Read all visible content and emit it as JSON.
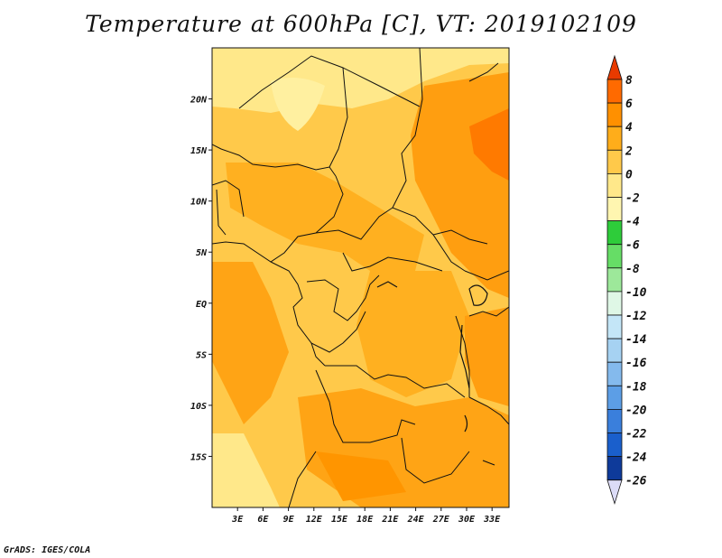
{
  "title": "Temperature at 600hPa [C], VT: 2019102109",
  "credit": "GrADS: IGES/COLA",
  "map": {
    "lon_range": [
      0,
      35
    ],
    "lat_range": [
      -20,
      25
    ],
    "lat_ticks": [
      {
        "value": 20,
        "label": "20N"
      },
      {
        "value": 15,
        "label": "15N"
      },
      {
        "value": 10,
        "label": "10N"
      },
      {
        "value": 5,
        "label": "5N"
      },
      {
        "value": 0,
        "label": "EQ"
      },
      {
        "value": -5,
        "label": "5S"
      },
      {
        "value": -10,
        "label": "10S"
      },
      {
        "value": -15,
        "label": "15S"
      }
    ],
    "lon_ticks": [
      {
        "value": 3,
        "label": "3E"
      },
      {
        "value": 6,
        "label": "6E"
      },
      {
        "value": 9,
        "label": "9E"
      },
      {
        "value": 12,
        "label": "12E"
      },
      {
        "value": 15,
        "label": "15E"
      },
      {
        "value": 18,
        "label": "18E"
      },
      {
        "value": 21,
        "label": "21E"
      },
      {
        "value": 24,
        "label": "24E"
      },
      {
        "value": 27,
        "label": "27E"
      },
      {
        "value": 30,
        "label": "30E"
      },
      {
        "value": 33,
        "label": "33E"
      }
    ]
  },
  "colorbar": {
    "labels": [
      "8",
      "6",
      "4",
      "2",
      "0",
      "-2",
      "-4",
      "-6",
      "-8",
      "-10",
      "-12",
      "-14",
      "-16",
      "-18",
      "-20",
      "-22",
      "-24",
      "-26"
    ],
    "colors": [
      "#ff3a00",
      "#ff6a00",
      "#ff9000",
      "#ffad1a",
      "#ffc94a",
      "#ffe88a",
      "#fff6b0",
      "#2ecc3a",
      "#66dd66",
      "#9de89a",
      "#dff7e6",
      "#c4e6f7",
      "#a6d2f2",
      "#84baed",
      "#5c9ee6",
      "#3a7fdc",
      "#1a5fcc",
      "#0e3a9a",
      "#07105a"
    ],
    "top_arrow_color": "#e83a00",
    "bottom_arrow_color": "#dcdcf7"
  },
  "chart_data": {
    "type": "heatmap",
    "title": "Temperature at 600hPa [C], VT: 2019102109",
    "x_ticks": [
      "3E",
      "6E",
      "9E",
      "12E",
      "15E",
      "18E",
      "21E",
      "24E",
      "27E",
      "30E",
      "33E"
    ],
    "y_ticks": [
      "20N",
      "15N",
      "10N",
      "5N",
      "EQ",
      "5S",
      "10S",
      "15S"
    ],
    "color_levels": [
      -26,
      -24,
      -22,
      -20,
      -18,
      -16,
      -14,
      -12,
      -10,
      -8,
      -6,
      -4,
      -2,
      0,
      2,
      4,
      6,
      8
    ],
    "dominant_range": [
      0,
      6
    ]
  }
}
